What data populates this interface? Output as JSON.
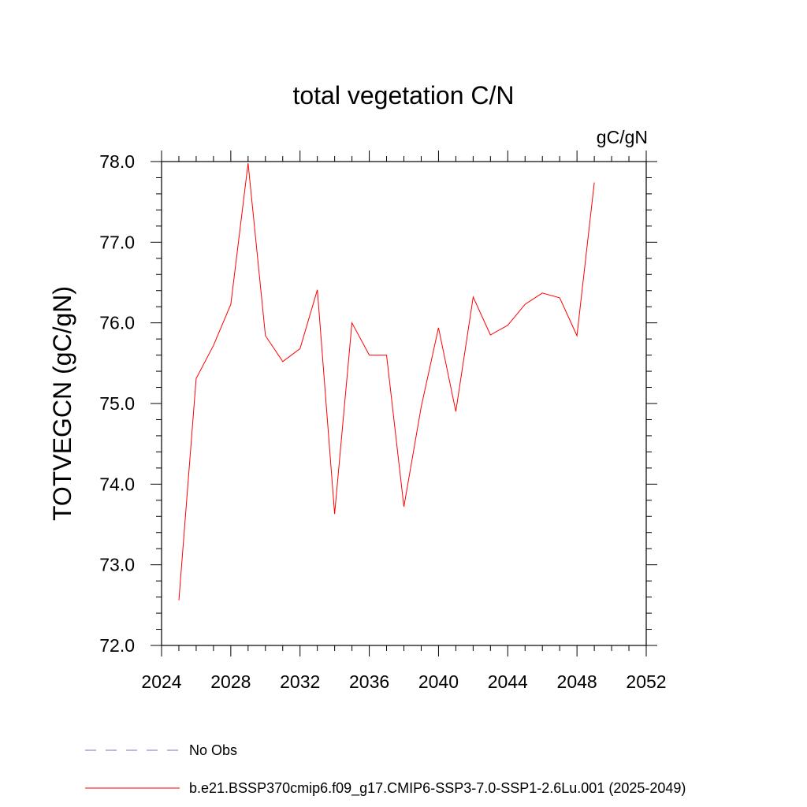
{
  "chart_data": {
    "type": "line",
    "title": "total vegetation C/N",
    "units_label": "gC/gN",
    "ylabel": "TOTVEGCN  (gC/gN)",
    "xlabel": "",
    "xlim": [
      2024,
      2052
    ],
    "ylim": [
      72.0,
      78.0
    ],
    "x_ticks": [
      "2024",
      "2028",
      "2032",
      "2036",
      "2040",
      "2044",
      "2048",
      "2052"
    ],
    "y_ticks": [
      "72.0",
      "73.0",
      "74.0",
      "75.0",
      "76.0",
      "77.0",
      "78.0"
    ],
    "grid": false,
    "series": [
      {
        "name": "b.e21.BSSP370cmip6.f09_g17.CMIP6-SSP3-7.0-SSP1-2.6Lu.001 (2025-2049)",
        "color": "#ff0000",
        "x": [
          2025,
          2026,
          2027,
          2028,
          2029,
          2030,
          2031,
          2032,
          2033,
          2034,
          2035,
          2036,
          2037,
          2038,
          2039,
          2040,
          2041,
          2042,
          2043,
          2044,
          2045,
          2046,
          2047,
          2048,
          2049
        ],
        "y": [
          72.56,
          75.31,
          75.72,
          76.23,
          77.98,
          75.84,
          75.52,
          75.68,
          76.41,
          73.63,
          76.0,
          75.6,
          75.6,
          73.72,
          74.96,
          75.94,
          74.9,
          76.32,
          75.85,
          75.97,
          76.23,
          76.37,
          76.31,
          75.84,
          77.74
        ]
      }
    ],
    "legend": [
      {
        "label": "No Obs",
        "style": "dashed",
        "color": "#7a6fb8"
      },
      {
        "label": "b.e21.BSSP370cmip6.f09_g17.CMIP6-SSP3-7.0-SSP1-2.6Lu.001 (2025-2049)",
        "style": "solid",
        "color": "#ff0000"
      }
    ],
    "legend_position": "bottom-left"
  }
}
